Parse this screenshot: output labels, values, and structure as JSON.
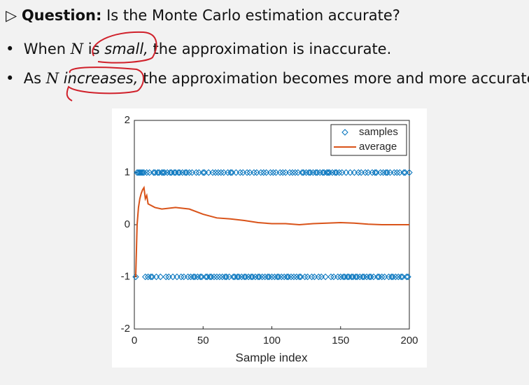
{
  "question": {
    "label": "Question:",
    "text": "Is the Monte Carlo estimation accurate?"
  },
  "bullets": [
    {
      "parts": [
        "When ",
        "N",
        " is ",
        "small,",
        " the approximation is inaccurate."
      ]
    },
    {
      "parts": [
        "As ",
        "N",
        " ",
        "increases,",
        " the approximation becomes more and more accurate."
      ]
    }
  ],
  "chart_data": {
    "type": "line",
    "xlabel": "Sample index",
    "xlim": [
      0,
      200
    ],
    "ylim": [
      -2,
      2
    ],
    "xticks": [
      0,
      50,
      100,
      150,
      200
    ],
    "yticks": [
      -2,
      -1,
      0,
      1,
      2
    ],
    "legend": "northeast",
    "series": [
      {
        "name": "samples",
        "color": "#0072bd",
        "mode": "markers",
        "x": [
          1,
          2,
          3,
          4,
          5,
          6,
          7,
          8,
          9,
          10,
          11,
          12,
          13,
          14,
          15,
          16,
          17,
          18,
          19,
          20,
          21,
          22,
          23,
          24,
          25,
          26,
          27,
          28,
          29,
          30,
          31,
          32,
          33,
          34,
          35,
          36,
          37,
          38,
          39,
          40,
          41,
          42,
          43,
          44,
          45,
          46,
          47,
          48,
          49,
          50,
          51,
          52,
          53,
          54,
          55,
          56,
          57,
          58,
          59,
          60,
          61,
          62,
          63,
          64,
          65,
          66,
          67,
          68,
          69,
          70,
          71,
          72,
          73,
          74,
          75,
          76,
          77,
          78,
          79,
          80,
          81,
          82,
          83,
          84,
          85,
          86,
          87,
          88,
          89,
          90,
          91,
          92,
          93,
          94,
          95,
          96,
          97,
          98,
          99,
          100,
          101,
          102,
          103,
          104,
          105,
          106,
          107,
          108,
          109,
          110,
          111,
          112,
          113,
          114,
          115,
          116,
          117,
          118,
          119,
          120,
          121,
          122,
          123,
          124,
          125,
          126,
          127,
          128,
          129,
          130,
          131,
          132,
          133,
          134,
          135,
          136,
          137,
          138,
          139,
          140,
          141,
          142,
          143,
          144,
          145,
          146,
          147,
          148,
          149,
          150,
          151,
          152,
          153,
          154,
          155,
          156,
          157,
          158,
          159,
          160,
          161,
          162,
          163,
          164,
          165,
          166,
          167,
          168,
          169,
          170,
          171,
          172,
          173,
          174,
          175,
          176,
          177,
          178,
          179,
          180,
          181,
          182,
          183,
          184,
          185,
          186,
          187,
          188,
          189,
          190,
          191,
          192,
          193,
          194,
          195,
          196,
          197,
          198,
          199,
          200
        ],
        "values": [
          -1,
          1,
          1,
          1,
          1,
          1,
          1,
          -1,
          1,
          -1,
          1,
          -1,
          -1,
          1,
          1,
          -1,
          1,
          1,
          -1,
          1,
          1,
          1,
          -1,
          1,
          -1,
          1,
          1,
          -1,
          1,
          1,
          -1,
          1,
          1,
          -1,
          1,
          -1,
          1,
          1,
          -1,
          1,
          -1,
          1,
          -1,
          -1,
          1,
          -1,
          1,
          -1,
          -1,
          1,
          1,
          -1,
          -1,
          1,
          -1,
          -1,
          1,
          -1,
          1,
          -1,
          1,
          -1,
          1,
          -1,
          1,
          -1,
          -1,
          1,
          -1,
          1,
          1,
          -1,
          -1,
          1,
          -1,
          -1,
          1,
          -1,
          1,
          -1,
          -1,
          1,
          -1,
          1,
          -1,
          -1,
          1,
          -1,
          1,
          -1,
          -1,
          1,
          -1,
          1,
          -1,
          1,
          -1,
          -1,
          1,
          -1,
          1,
          -1,
          1,
          -1,
          -1,
          1,
          -1,
          1,
          -1,
          1,
          -1,
          -1,
          1,
          -1,
          1,
          -1,
          1,
          -1,
          1,
          -1,
          -1,
          1,
          1,
          -1,
          1,
          -1,
          1,
          1,
          -1,
          1,
          -1,
          1,
          1,
          -1,
          1,
          -1,
          1,
          1,
          -1,
          1,
          1,
          1,
          -1,
          1,
          -1,
          1,
          1,
          -1,
          1,
          -1,
          1,
          -1,
          -1,
          1,
          -1,
          -1,
          1,
          -1,
          -1,
          1,
          -1,
          -1,
          1,
          -1,
          1,
          -1,
          -1,
          1,
          -1,
          1,
          -1,
          -1,
          1,
          -1,
          1,
          1,
          -1,
          -1,
          1,
          -1,
          1,
          -1,
          1,
          1,
          -1,
          1,
          -1,
          -1,
          1,
          -1,
          1,
          -1,
          1,
          -1,
          -1,
          1,
          1,
          -1,
          -1,
          1
        ]
      },
      {
        "name": "average",
        "color": "#d95319",
        "mode": "line",
        "x": [
          1,
          2,
          3,
          4,
          5,
          6,
          7,
          8,
          9,
          10,
          15,
          20,
          30,
          40,
          50,
          60,
          70,
          80,
          90,
          100,
          110,
          120,
          130,
          140,
          150,
          160,
          170,
          180,
          190,
          200
        ],
        "values": [
          -1,
          0,
          0.33,
          0.5,
          0.6,
          0.67,
          0.71,
          0.5,
          0.56,
          0.4,
          0.33,
          0.3,
          0.33,
          0.3,
          0.2,
          0.13,
          0.11,
          0.08,
          0.04,
          0.02,
          0.02,
          0,
          0.02,
          0.03,
          0.04,
          0.03,
          0.01,
          0,
          0,
          0
        ]
      }
    ]
  }
}
